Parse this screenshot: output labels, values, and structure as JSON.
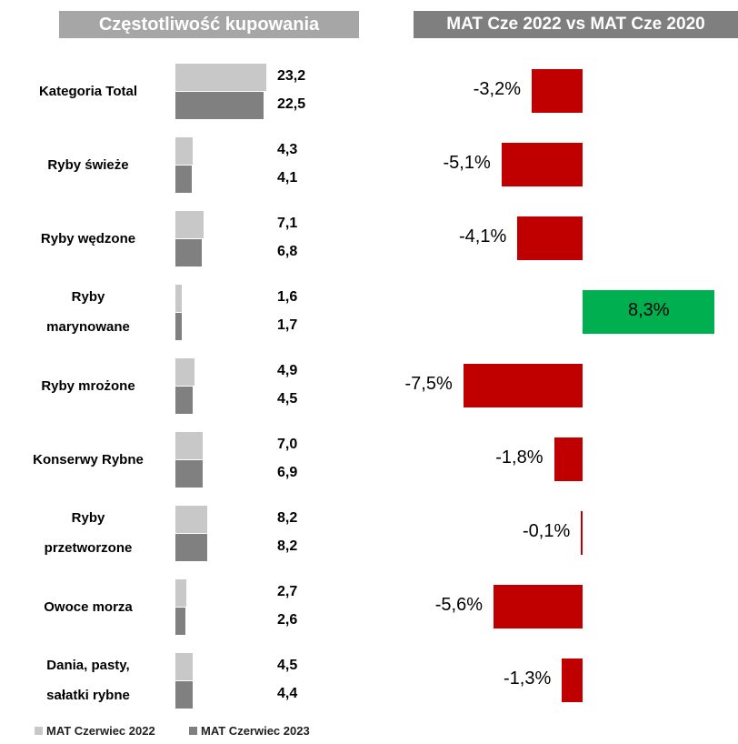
{
  "chart_data": [
    {
      "type": "grouped-hbar",
      "title": "Częstotliwość kupowania",
      "categories": [
        "Kategoria Total",
        "Ryby świeże",
        "Ryby wędzone",
        "Ryby\nmarynowane",
        "Ryby mrożone",
        "Konserwy Rybne",
        "Ryby\nprzetworzone",
        "Owoce morza",
        "Dania, pasty,\nsałatki rybne"
      ],
      "series": [
        {
          "name": "MAT Czerwiec 2022",
          "color": "#c8c8c8",
          "values": [
            23.2,
            4.3,
            7.1,
            1.6,
            4.9,
            7.0,
            8.2,
            2.7,
            4.5
          ],
          "value_labels": [
            "23,2",
            "4,3",
            "7,1",
            "1,6",
            "4,9",
            "7,0",
            "8,2",
            "2,7",
            "4,5"
          ]
        },
        {
          "name": "MAT Czerwiec 2023",
          "color": "#808080",
          "values": [
            22.5,
            4.1,
            6.8,
            1.7,
            4.5,
            6.9,
            8.2,
            2.6,
            4.4
          ],
          "value_labels": [
            "22,5",
            "4,1",
            "6,8",
            "1,7",
            "4,5",
            "6,9",
            "8,2",
            "2,6",
            "4,4"
          ]
        }
      ],
      "xlim": [
        0,
        25
      ]
    },
    {
      "type": "diverging-hbar",
      "title": "MAT Cze 2022 vs MAT Cze 2020",
      "values": [
        -3.2,
        -5.1,
        -4.1,
        8.3,
        -7.5,
        -1.8,
        -0.1,
        -5.6,
        -1.3
      ],
      "value_labels": [
        "-3,2%",
        "-5,1%",
        "-4,1%",
        "8,3%",
        "-7,5%",
        "-1,8%",
        "-0,1%",
        "-5,6%",
        "-1,3%"
      ],
      "colors": [
        "#c00000",
        "#c00000",
        "#c00000",
        "#00b050",
        "#c00000",
        "#c00000",
        "#c00000",
        "#c00000",
        "#c00000"
      ],
      "xlim": [
        -8,
        9
      ]
    }
  ]
}
